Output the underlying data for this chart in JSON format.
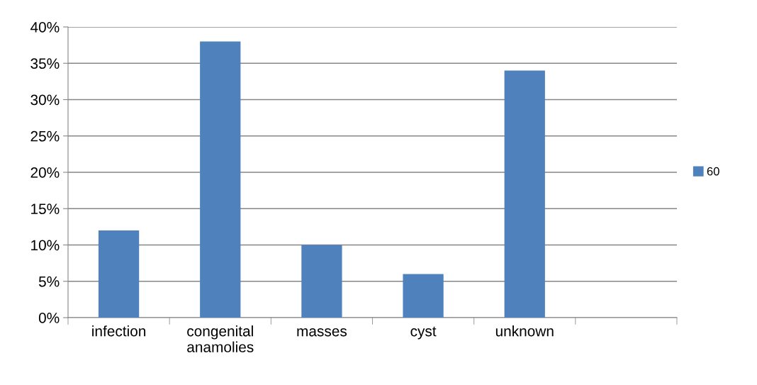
{
  "chart_data": {
    "type": "bar",
    "categories": [
      "infection",
      "congenital\nanamolies",
      "masses",
      "cyst",
      "unknown",
      null
    ],
    "series": [
      {
        "name": "60",
        "color": "#4f81bd",
        "values": [
          12,
          38,
          10,
          6,
          34,
          null
        ]
      }
    ],
    "ylim": [
      0,
      40
    ],
    "yticks": [
      {
        "value": 0,
        "label": "0%"
      },
      {
        "value": 5,
        "label": "5%"
      },
      {
        "value": 10,
        "label": "10%"
      },
      {
        "value": 15,
        "label": "15%"
      },
      {
        "value": 20,
        "label": "20%"
      },
      {
        "value": 25,
        "label": "25%"
      },
      {
        "value": 30,
        "label": "30%"
      },
      {
        "value": 35,
        "label": "35%"
      },
      {
        "value": 40,
        "label": "40%"
      }
    ],
    "grid": "y",
    "legend": "right"
  }
}
